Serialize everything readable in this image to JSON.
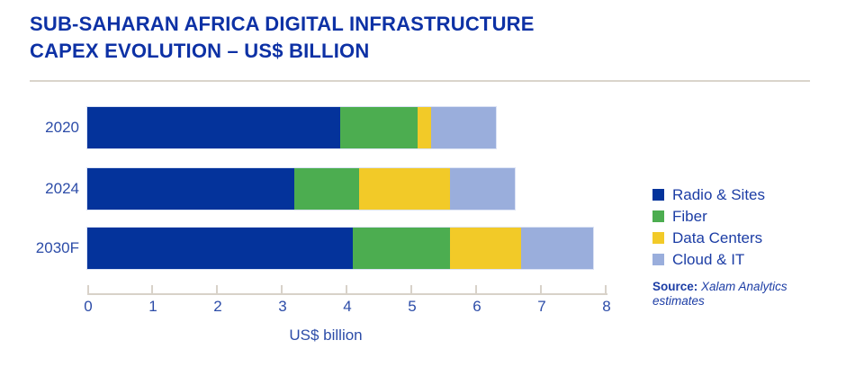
{
  "title": {
    "line1": "SUB-SAHARAN AFRICA DIGITAL INFRASTRUCTURE",
    "line2": "CAPEX EVOLUTION – US$ BILLION"
  },
  "chart_data": {
    "type": "bar",
    "orientation": "horizontal_stacked",
    "categories": [
      "2020",
      "2024",
      "2030F"
    ],
    "series": [
      {
        "name": "Radio & Sites",
        "color": "#04339B",
        "values": [
          3.9,
          3.2,
          4.1
        ]
      },
      {
        "name": "Fiber",
        "color": "#4CAD50",
        "values": [
          1.2,
          1.0,
          1.5
        ]
      },
      {
        "name": "Data Centers",
        "color": "#F2CA28",
        "values": [
          0.2,
          1.4,
          1.1
        ]
      },
      {
        "name": "Cloud & IT",
        "color": "#9AAEDC",
        "values": [
          1.0,
          1.0,
          1.1
        ]
      }
    ],
    "totals": [
      6.3,
      6.6,
      7.8
    ],
    "xlabel": "US$ billion",
    "xlim": [
      0,
      8
    ],
    "xticks": [
      0,
      1,
      2,
      3,
      4,
      5,
      6,
      7,
      8
    ],
    "grid": false,
    "legend_position": "right"
  },
  "source": {
    "label": "Source:",
    "text": "Xalam Analytics estimates"
  },
  "colors": {
    "title_text": "#0D31A5",
    "axis_text": "#2C4CA8",
    "axis_line": "#D8D2C9",
    "divider": "#DAD4CB",
    "background": "#FFFFFF"
  }
}
